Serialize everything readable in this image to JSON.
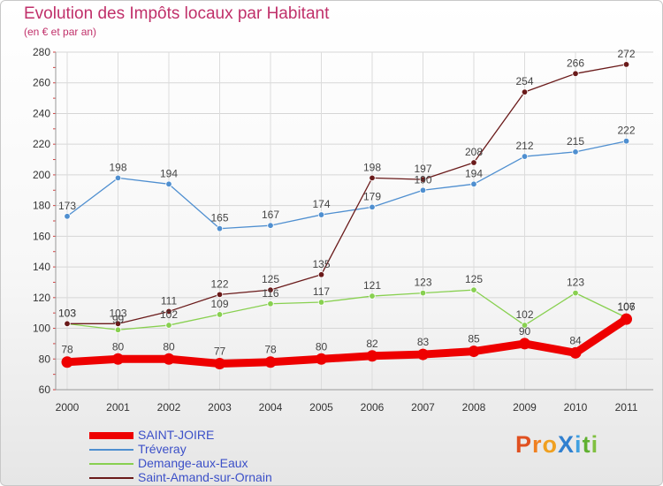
{
  "page": {
    "title": "Evolution des Impôts locaux par Habitant",
    "subtitle": "(en € et par an)",
    "brand": "ProXiti",
    "brand_letters": [
      {
        "ch": "P",
        "color": "#e05020"
      },
      {
        "ch": "r",
        "color": "#f08020"
      },
      {
        "ch": "o",
        "color": "#f0a020"
      },
      {
        "ch": "X",
        "color": "#3080d0"
      },
      {
        "ch": "i",
        "color": "#40a0e0"
      },
      {
        "ch": "t",
        "color": "#60b030"
      },
      {
        "ch": "i",
        "color": "#80c040"
      }
    ]
  },
  "chart_data": {
    "type": "line",
    "x": [
      2000,
      2001,
      2002,
      2003,
      2004,
      2005,
      2006,
      2007,
      2008,
      2009,
      2010,
      2011
    ],
    "ylim": [
      60,
      280
    ],
    "yticks": [
      60,
      80,
      100,
      120,
      140,
      160,
      180,
      200,
      220,
      240,
      260,
      280
    ],
    "grid": true,
    "legend_position": "bottom",
    "series": [
      {
        "name": "SAINT-JOIRE",
        "color": "#ee0000",
        "values": [
          78,
          80,
          80,
          77,
          78,
          80,
          82,
          83,
          85,
          90,
          84,
          106
        ]
      },
      {
        "name": "Tréveray",
        "color": "#4f8fd0",
        "values": [
          173,
          198,
          194,
          165,
          167,
          174,
          179,
          190,
          194,
          212,
          215,
          222
        ]
      },
      {
        "name": "Demange-aux-Eaux",
        "color": "#88d050",
        "values": [
          103,
          99,
          102,
          109,
          116,
          117,
          121,
          123,
          125,
          102,
          123,
          107
        ]
      },
      {
        "name": "Saint-Amand-sur-Ornain",
        "color": "#6a1a1a",
        "values": [
          103,
          103,
          111,
          122,
          125,
          135,
          198,
          197,
          208,
          254,
          266,
          272
        ]
      }
    ],
    "data_labels": [
      {
        "series": 0,
        "labels": [
          "78",
          "80",
          "80",
          "77",
          "78",
          "80",
          "82",
          "83",
          "85",
          "90",
          "84",
          "106"
        ]
      },
      {
        "series": 1,
        "labels": [
          "173",
          "198",
          "194",
          "165",
          "167",
          "174",
          "179",
          "190",
          "194",
          "212",
          "215",
          "222"
        ]
      },
      {
        "series": 2,
        "labels": [
          "103",
          "99",
          "102",
          "109",
          "116",
          "117",
          "121",
          "123",
          "125",
          "102",
          "123",
          "107"
        ]
      },
      {
        "series": 3,
        "labels": [
          "103",
          "103",
          "111",
          "122",
          "125",
          "135",
          "198",
          "197",
          "208",
          "254",
          "266",
          "272"
        ]
      }
    ]
  }
}
